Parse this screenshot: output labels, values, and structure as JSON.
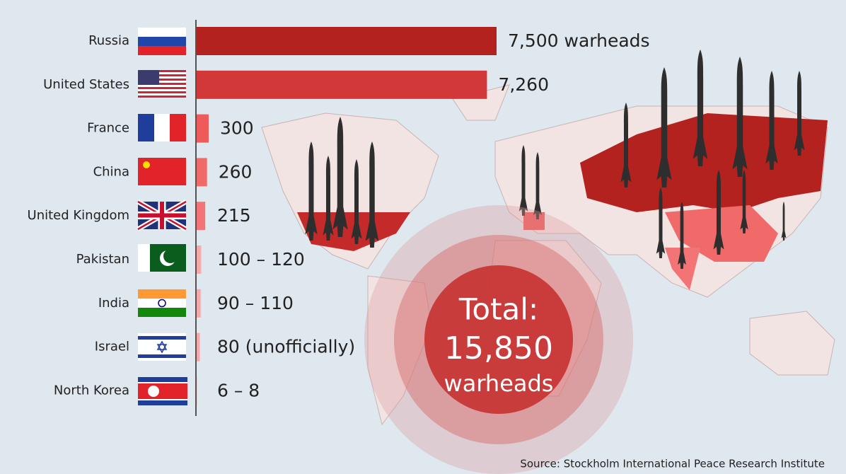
{
  "chart_data": {
    "type": "bar",
    "categories": [
      "Russia",
      "United States",
      "France",
      "China",
      "United Kingdom",
      "Pakistan",
      "India",
      "Israel",
      "North Korea"
    ],
    "values": [
      7500,
      7260,
      300,
      260,
      215,
      [
        100,
        120
      ],
      [
        90,
        110
      ],
      80,
      [
        6,
        8
      ]
    ],
    "value_labels": [
      "7,500 warheads",
      "7,260",
      "300",
      "260",
      "215",
      "100 – 120",
      "90 – 110",
      "80 (unofficially)",
      "6 – 8"
    ],
    "colors": [
      "#b3221f",
      "#d2383a",
      "#ef5b5b",
      "#f06a6a",
      "#f27474",
      "#f4a8a8",
      "#f4a8a8",
      "#f4a8a8",
      "#f4a8a8"
    ],
    "xlim": [
      0,
      7500
    ],
    "total": {
      "title": "Total:",
      "value": 15850,
      "value_label": "15,850",
      "unit": "warheads"
    },
    "source": "Source: Stockholm International Peace Research Institute"
  }
}
